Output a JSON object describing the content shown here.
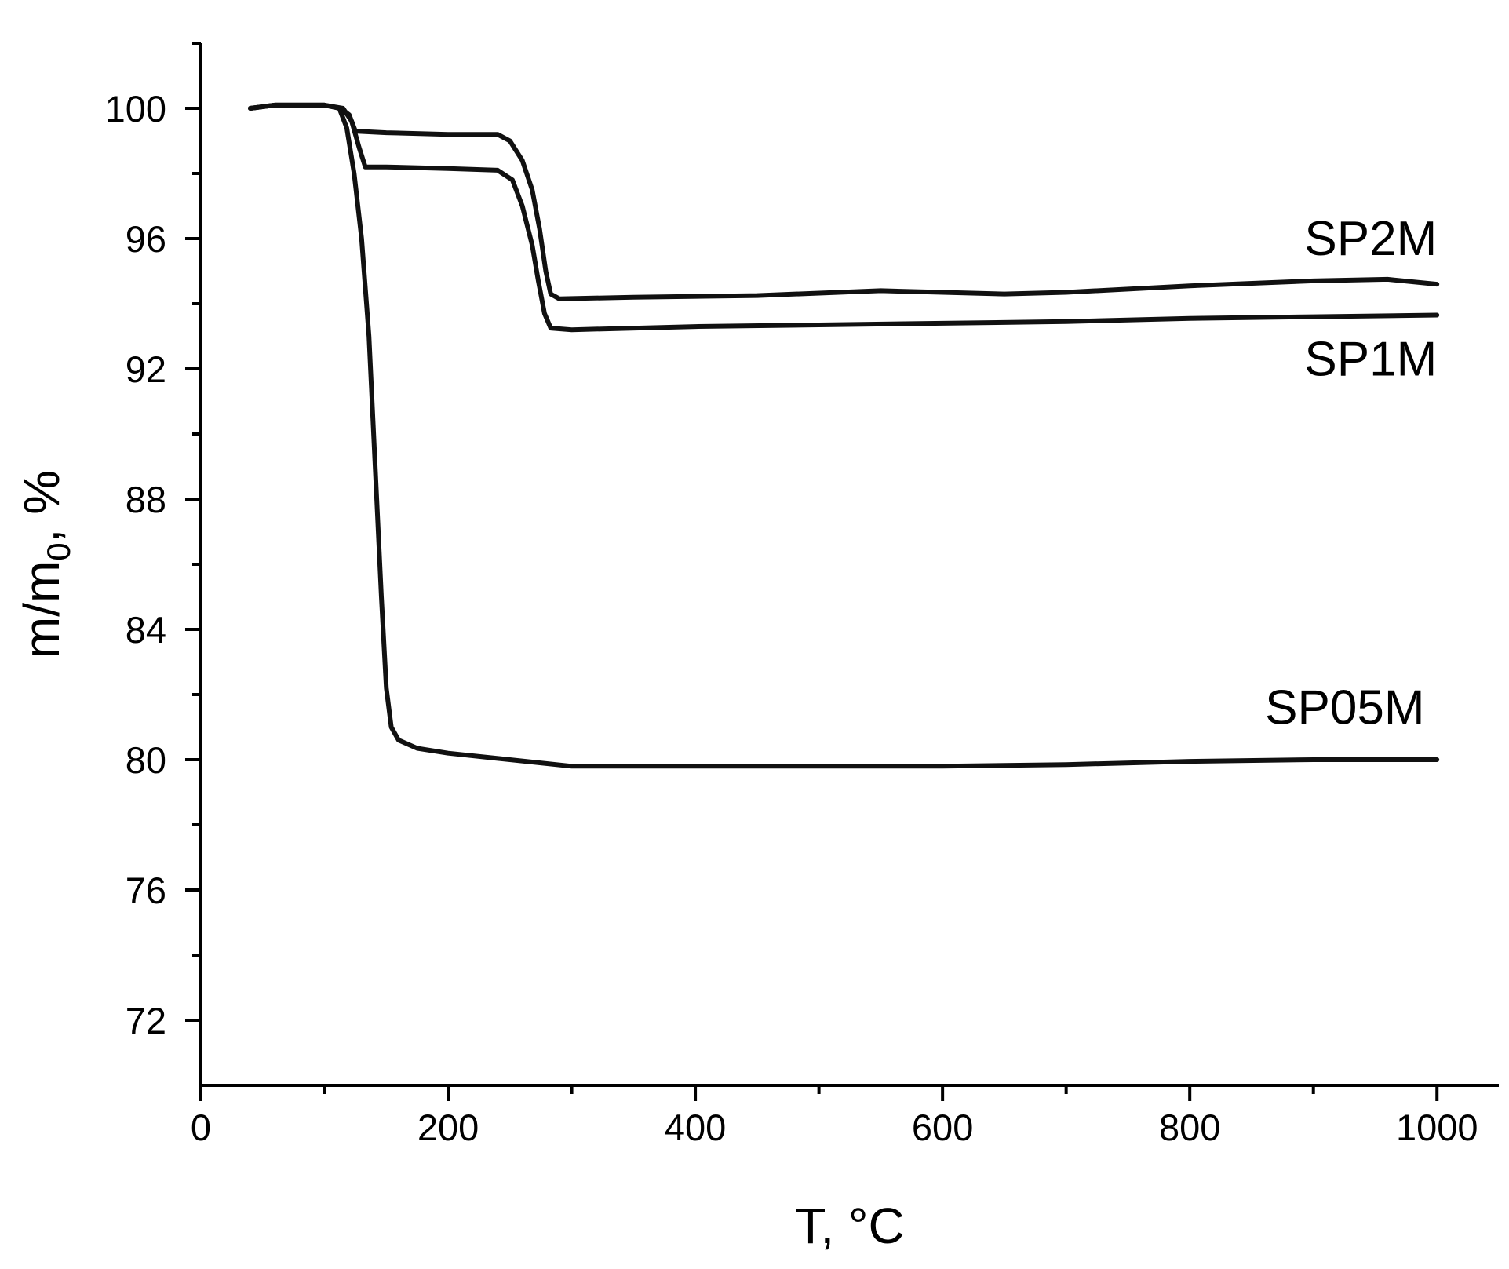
{
  "chart_data": {
    "type": "line",
    "title": "",
    "xlabel": "T, °C",
    "ylabel_main": "m/m",
    "ylabel_sub": "0",
    "ylabel_tail": ", %",
    "xlim": [
      0,
      1050
    ],
    "ylim": [
      70,
      102
    ],
    "x_ticks": [
      0,
      200,
      400,
      600,
      800,
      1000
    ],
    "x_tick_labels": [
      "0",
      "200",
      "400",
      "600",
      "800",
      "1000"
    ],
    "x_minor_ticks": [
      100,
      300,
      500,
      700,
      900
    ],
    "y_ticks": [
      72,
      76,
      80,
      84,
      88,
      92,
      96,
      100
    ],
    "y_tick_labels": [
      "72",
      "76",
      "80",
      "84",
      "88",
      "92",
      "96",
      "100"
    ],
    "y_minor_ticks": [
      74,
      78,
      82,
      86,
      90,
      94,
      98,
      102
    ],
    "grid": false,
    "line_color": "#111111",
    "series": [
      {
        "name": "SP2M",
        "points": [
          [
            40,
            100.0
          ],
          [
            60,
            100.1
          ],
          [
            100,
            100.1
          ],
          [
            113,
            100.0
          ],
          [
            120,
            99.8
          ],
          [
            125,
            99.3
          ],
          [
            150,
            99.25
          ],
          [
            200,
            99.2
          ],
          [
            240,
            99.2
          ],
          [
            250,
            99.0
          ],
          [
            260,
            98.4
          ],
          [
            268,
            97.5
          ],
          [
            274,
            96.3
          ],
          [
            279,
            95.0
          ],
          [
            283,
            94.3
          ],
          [
            290,
            94.15
          ],
          [
            350,
            94.2
          ],
          [
            450,
            94.25
          ],
          [
            550,
            94.4
          ],
          [
            600,
            94.35
          ],
          [
            650,
            94.3
          ],
          [
            700,
            94.35
          ],
          [
            800,
            94.55
          ],
          [
            900,
            94.7
          ],
          [
            960,
            94.75
          ],
          [
            1000,
            94.6
          ]
        ]
      },
      {
        "name": "SP1M",
        "points": [
          [
            40,
            100.0
          ],
          [
            60,
            100.1
          ],
          [
            100,
            100.1
          ],
          [
            115,
            100.0
          ],
          [
            122,
            99.6
          ],
          [
            128,
            98.8
          ],
          [
            133,
            98.2
          ],
          [
            150,
            98.2
          ],
          [
            200,
            98.15
          ],
          [
            240,
            98.1
          ],
          [
            252,
            97.8
          ],
          [
            260,
            97.0
          ],
          [
            268,
            95.8
          ],
          [
            273,
            94.7
          ],
          [
            278,
            93.7
          ],
          [
            283,
            93.25
          ],
          [
            300,
            93.2
          ],
          [
            400,
            93.3
          ],
          [
            500,
            93.35
          ],
          [
            600,
            93.4
          ],
          [
            700,
            93.45
          ],
          [
            800,
            93.55
          ],
          [
            900,
            93.6
          ],
          [
            1000,
            93.65
          ]
        ]
      },
      {
        "name": "SP05M",
        "points": [
          [
            40,
            100.0
          ],
          [
            60,
            100.1
          ],
          [
            100,
            100.1
          ],
          [
            112,
            100.0
          ],
          [
            118,
            99.4
          ],
          [
            124,
            98.0
          ],
          [
            130,
            96.0
          ],
          [
            136,
            93.0
          ],
          [
            141,
            89.0
          ],
          [
            146,
            85.0
          ],
          [
            150,
            82.2
          ],
          [
            154,
            81.0
          ],
          [
            160,
            80.6
          ],
          [
            175,
            80.35
          ],
          [
            200,
            80.2
          ],
          [
            250,
            80.0
          ],
          [
            300,
            79.8
          ],
          [
            400,
            79.8
          ],
          [
            500,
            79.8
          ],
          [
            600,
            79.8
          ],
          [
            700,
            79.85
          ],
          [
            800,
            79.95
          ],
          [
            900,
            80.0
          ],
          [
            1000,
            80.0
          ]
        ]
      }
    ],
    "annotations": [
      {
        "text": "SP2M",
        "x": 1000,
        "y": 95.5
      },
      {
        "text": "SP1M",
        "x": 1000,
        "y": 91.8
      },
      {
        "text": "SP05M",
        "x": 990,
        "y": 81.1
      }
    ]
  }
}
